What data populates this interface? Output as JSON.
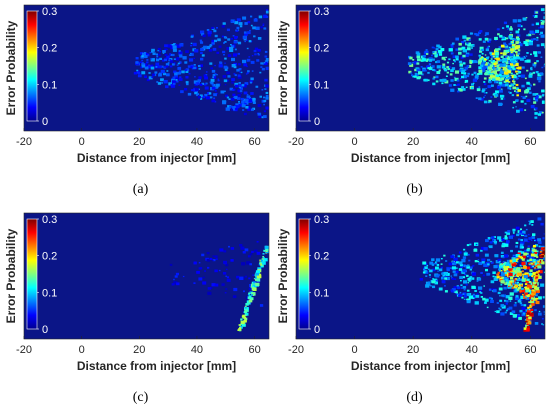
{
  "colors": {
    "background": "#0b1587",
    "colormap": [
      "#00008f",
      "#0000ff",
      "#0080ff",
      "#00ffff",
      "#80ff80",
      "#ffff00",
      "#ff8000",
      "#ff0000",
      "#800000"
    ],
    "axis_text": "#262626"
  },
  "chart_data": [
    {
      "type": "heatmap",
      "caption": "(a)",
      "xlabel": "Distance from injector [mm]",
      "ylabel": "Error Probability",
      "xticks": [
        "-20",
        "0",
        "20",
        "40",
        "60"
      ],
      "xlim": [
        -20,
        65
      ],
      "colorbar": {
        "range": [
          0,
          0.3
        ],
        "ticks": [
          "0",
          "0.1",
          "0.2",
          "0.3"
        ]
      },
      "regions": [
        {
          "shape": "spray-core",
          "x": [
            18,
            64
          ],
          "value": 0.07
        },
        {
          "shape": "jet-tail",
          "x": [
            52,
            58
          ],
          "value": 0.06
        }
      ]
    },
    {
      "type": "heatmap",
      "caption": "(b)",
      "xlabel": "Distance from injector [mm]",
      "ylabel": "Error Probability",
      "xticks": [
        "-20",
        "0",
        "20",
        "40",
        "60"
      ],
      "xlim": [
        -20,
        65
      ],
      "colorbar": {
        "range": [
          0,
          0.3
        ],
        "ticks": [
          "0",
          "0.1",
          "0.2",
          "0.3"
        ]
      },
      "regions": [
        {
          "shape": "spray-core",
          "x": [
            18,
            65
          ],
          "value": 0.12
        },
        {
          "shape": "hot-spot",
          "x": [
            42,
            56
          ],
          "value": 0.16
        }
      ]
    },
    {
      "type": "heatmap",
      "caption": "(c)",
      "xlabel": "Distance from injector [mm]",
      "ylabel": "Error Probability",
      "xticks": [
        "-20",
        "0",
        "20",
        "40",
        "60"
      ],
      "xlim": [
        -20,
        65
      ],
      "colorbar": {
        "range": [
          0,
          0.3
        ],
        "ticks": [
          "0",
          "0.1",
          "0.2",
          "0.3"
        ]
      },
      "regions": [
        {
          "shape": "spray-fringe",
          "x": [
            30,
            62
          ],
          "value": 0.04
        },
        {
          "shape": "edge-arc",
          "x": [
            54,
            65
          ],
          "value": 0.16
        }
      ]
    },
    {
      "type": "heatmap",
      "caption": "(d)",
      "xlabel": "Distance from injector [mm]",
      "ylabel": "Error Probability",
      "xticks": [
        "-20",
        "0",
        "20",
        "40",
        "60"
      ],
      "xlim": [
        -20,
        65
      ],
      "colorbar": {
        "range": [
          0,
          0.3
        ],
        "ticks": [
          "0",
          "0.1",
          "0.2",
          "0.3"
        ]
      },
      "regions": [
        {
          "shape": "spray-core",
          "x": [
            22,
            65
          ],
          "value": 0.1
        },
        {
          "shape": "hot-spot",
          "x": [
            48,
            62
          ],
          "value": 0.22
        },
        {
          "shape": "edge-arc",
          "x": [
            58,
            65
          ],
          "value": 0.28
        }
      ]
    }
  ]
}
